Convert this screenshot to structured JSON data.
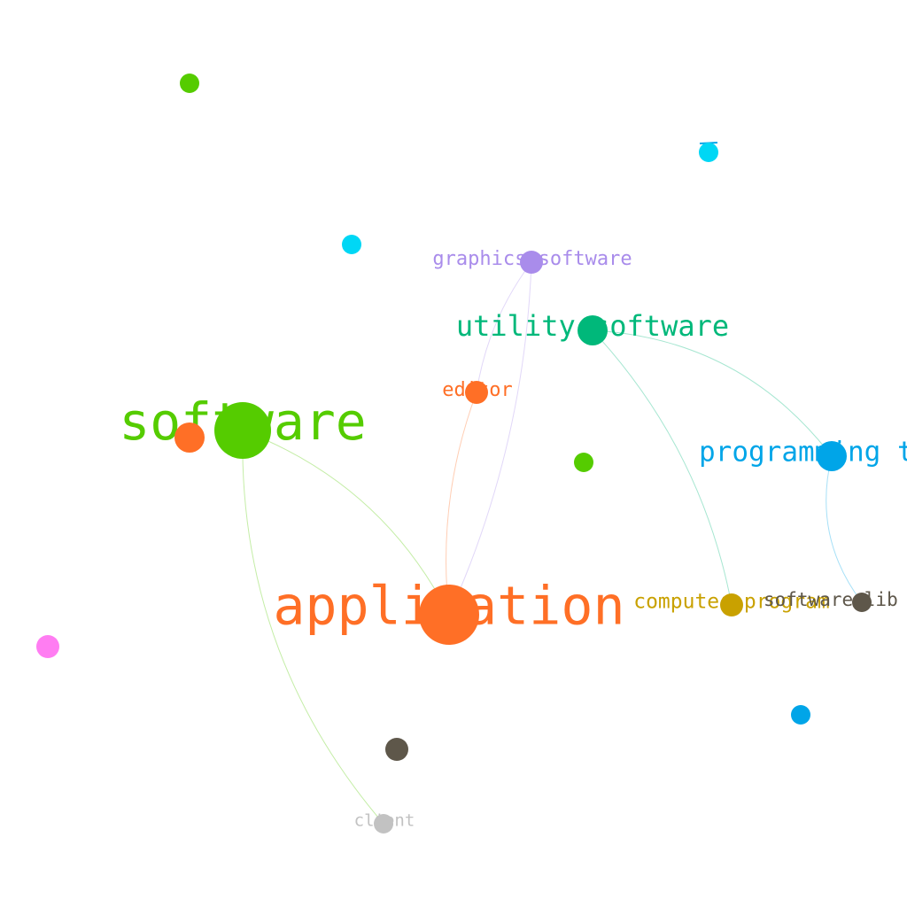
{
  "nodes": [
    {
      "id": "software",
      "label": "software",
      "color": "#55cc00",
      "size": "xl"
    },
    {
      "id": "application",
      "label": "application",
      "color": "#ff6f26",
      "size": "xxl"
    },
    {
      "id": "utility-software",
      "label": "utility software",
      "color": "#00b87a",
      "size": "lg"
    },
    {
      "id": "graphics-software",
      "label": "graphics software",
      "color": "#a98ceb",
      "size": "md"
    },
    {
      "id": "editor",
      "label": "editor",
      "color": "#ff6f26",
      "size": "md"
    },
    {
      "id": "programming-tool",
      "label": "programming t",
      "color": "#00a5e8",
      "size": "lg"
    },
    {
      "id": "computer-program",
      "label": "computer program",
      "color": "#c9a100",
      "size": "md"
    },
    {
      "id": "software-library",
      "label": "software lib",
      "color": "#5e574a",
      "size": "sm"
    },
    {
      "id": "client",
      "label": "client",
      "color": "#c2c2c2",
      "size": "sm"
    },
    {
      "id": "software-orange",
      "label": "",
      "color": "#ff6f26",
      "size": "lg"
    },
    {
      "id": "dot-green-top",
      "label": "",
      "color": "#55cc00",
      "size": "sm"
    },
    {
      "id": "dot-cyan-top",
      "label": "",
      "color": "#00d7f5",
      "size": "sm"
    },
    {
      "id": "dot-cyan-mid",
      "label": "",
      "color": "#00d7f5",
      "size": "sm"
    },
    {
      "id": "dot-green-mid",
      "label": "",
      "color": "#55cc00",
      "size": "sm"
    },
    {
      "id": "dot-pink",
      "label": "",
      "color": "#ff7df2",
      "size": "md"
    },
    {
      "id": "dot-brown",
      "label": "",
      "color": "#5e574a",
      "size": "md"
    },
    {
      "id": "dot-blue",
      "label": "",
      "color": "#00a5e8",
      "size": "sm"
    }
  ],
  "edges": [
    {
      "source": "software",
      "target": "application",
      "color": "#55cc00"
    },
    {
      "source": "software",
      "target": "client",
      "color": "#55cc00"
    },
    {
      "source": "editor",
      "target": "application",
      "color": "#ff6f26"
    },
    {
      "source": "graphics-software",
      "target": "application",
      "color": "#a98ceb"
    },
    {
      "source": "graphics-software",
      "target": "editor",
      "color": "#a98ceb"
    },
    {
      "source": "utility-software",
      "target": "programming-tool",
      "color": "#00b87a"
    },
    {
      "source": "utility-software",
      "target": "computer-program",
      "color": "#00b87a"
    },
    {
      "source": "programming-tool",
      "target": "software-library",
      "color": "#00a5e8"
    }
  ]
}
